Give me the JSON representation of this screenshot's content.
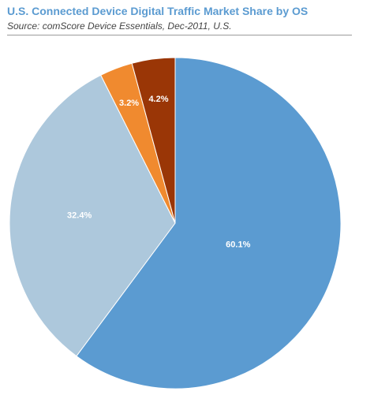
{
  "chart_data": {
    "type": "pie",
    "title": "U.S. Connected Device Digital Traffic Market Share by OS",
    "subtitle": "Source: comScore Device Essentials, Dec-2011, U.S.",
    "slices": [
      {
        "value": 60.1,
        "label": "60.1%",
        "color": "#5b9bd1"
      },
      {
        "value": 32.4,
        "label": "32.4%",
        "color": "#adc8dc"
      },
      {
        "value": 3.2,
        "label": "3.2%",
        "color": "#f08a2f"
      },
      {
        "value": 4.2,
        "label": "4.2%",
        "color": "#9a3606"
      }
    ],
    "start": "12 o'clock",
    "direction": "clockwise",
    "legend": "none"
  }
}
